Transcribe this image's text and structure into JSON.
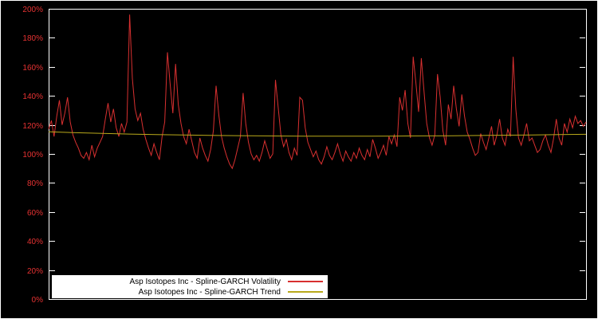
{
  "chart_data": {
    "type": "line",
    "title": "",
    "xlabel": "",
    "ylabel": "",
    "ylim": [
      0,
      200
    ],
    "grid": false,
    "legend_position": "bottom-left-inside",
    "y_ticks": [
      0,
      20,
      40,
      60,
      80,
      100,
      120,
      140,
      160,
      180,
      200
    ],
    "y_tick_labels": [
      "0%",
      "20%",
      "40%",
      "60%",
      "80%",
      "100%",
      "120%",
      "140%",
      "160%",
      "180%",
      "200%"
    ],
    "series": [
      {
        "name": "Asp Isotopes Inc - Spline-GARCH Volatility",
        "color": "#d83030",
        "unit": "percent",
        "values": [
          117,
          123,
          112,
          126,
          137,
          120,
          128,
          139,
          122,
          113,
          108,
          104,
          99,
          97,
          101,
          96,
          106,
          98,
          104,
          108,
          112,
          124,
          135,
          122,
          131,
          118,
          112,
          121,
          115,
          122,
          196,
          152,
          131,
          123,
          128,
          117,
          110,
          104,
          99,
          107,
          101,
          96,
          112,
          122,
          170,
          148,
          128,
          162,
          134,
          121,
          112,
          107,
          117,
          109,
          101,
          97,
          111,
          104,
          99,
          95,
          103,
          116,
          147,
          127,
          112,
          104,
          98,
          93,
          90,
          96,
          104,
          112,
          142,
          121,
          108,
          100,
          96,
          99,
          95,
          101,
          109,
          103,
          97,
          100,
          151,
          132,
          113,
          105,
          110,
          101,
          96,
          104,
          99,
          139,
          137,
          118,
          108,
          103,
          98,
          102,
          96,
          93,
          98,
          105,
          99,
          96,
          101,
          107,
          100,
          95,
          102,
          98,
          95,
          101,
          97,
          104,
          99,
          96,
          103,
          98,
          110,
          104,
          97,
          101,
          106,
          99,
          112,
          107,
          113,
          105,
          139,
          130,
          144,
          121,
          111,
          167,
          149,
          129,
          166,
          143,
          121,
          111,
          106,
          113,
          155,
          139,
          116,
          106,
          134,
          124,
          147,
          131,
          119,
          141,
          126,
          115,
          110,
          104,
          99,
          101,
          114,
          108,
          103,
          111,
          119,
          106,
          113,
          124,
          111,
          106,
          117,
          112,
          167,
          131,
          111,
          106,
          113,
          121,
          109,
          111,
          106,
          101,
          103,
          109,
          113,
          106,
          101,
          111,
          124,
          111,
          106,
          121,
          115,
          124,
          118,
          126,
          121,
          123,
          119,
          122
        ]
      },
      {
        "name": "Asp Isotopes Inc - Spline-GARCH Trend",
        "color": "#b9a91b",
        "unit": "percent",
        "values": [
          115.2,
          114.6,
          114.1,
          113.7,
          113.3,
          113.0,
          112.8,
          112.6,
          112.4,
          112.3,
          112.2,
          112.2,
          112.2,
          112.3,
          112.4,
          112.5,
          112.7,
          112.9,
          113.1,
          113.3,
          113.5
        ]
      }
    ]
  },
  "colors": {
    "background": "#000000",
    "plot_border": "#ffffff",
    "tick": "#ffffff",
    "axis_label": "#e63232",
    "legend_background": "#ffffff",
    "legend_text": "#000000"
  },
  "legend": {
    "items": [
      {
        "label": "Asp Isotopes Inc - Spline-GARCH Volatility",
        "color": "#d83030"
      },
      {
        "label": "Asp Isotopes Inc - Spline-GARCH Trend",
        "color": "#b9a91b"
      }
    ]
  }
}
